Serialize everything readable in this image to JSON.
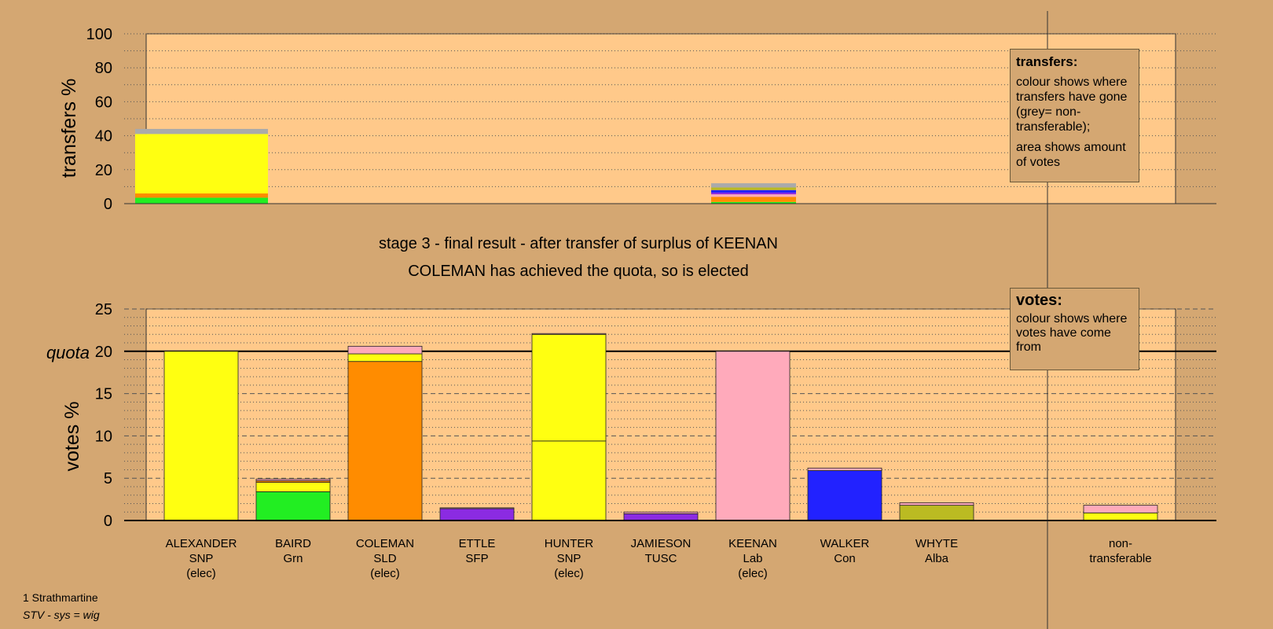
{
  "chart_data": [
    {
      "type": "bar",
      "stacked": true,
      "ylabel": "transfers %",
      "ylim": [
        0,
        100
      ],
      "yticks": [
        0,
        20,
        40,
        60,
        80,
        100
      ],
      "grid": "dotted every 10",
      "bars": [
        {
          "column": 0,
          "width": "wide",
          "segments": [
            {
              "value": 3.5,
              "color": "#22ee22"
            },
            {
              "value": 2.5,
              "color": "#ff8c00"
            },
            {
              "value": 35,
              "color": "#ffff11"
            },
            {
              "value": 3,
              "color": "#aaaaaa"
            }
          ]
        },
        {
          "column": 6,
          "width": "medium",
          "segments": [
            {
              "value": 1,
              "color": "#22ee22"
            },
            {
              "value": 3,
              "color": "#ff8c00"
            },
            {
              "value": 1.5,
              "color": "#ffaabb"
            },
            {
              "value": 1,
              "color": "#8b2be2"
            },
            {
              "value": 1.5,
              "color": "#2222ff"
            },
            {
              "value": 1.5,
              "color": "#bbbb22"
            },
            {
              "value": 2.5,
              "color": "#aaaaaa"
            }
          ]
        }
      ]
    },
    {
      "type": "bar",
      "stacked": true,
      "ylabel": "votes %",
      "ylim": [
        0,
        25
      ],
      "yticks": [
        0,
        5,
        10,
        15,
        20,
        25
      ],
      "quota": 20,
      "quota_label": "quota",
      "grid": "dotted every 1, dashed every 5",
      "bars": [
        {
          "column": 0,
          "segments": [
            {
              "value": 20,
              "color": "#ffff11"
            }
          ]
        },
        {
          "column": 1,
          "segments": [
            {
              "value": 3.4,
              "color": "#22ee22"
            },
            {
              "value": 1.1,
              "color": "#ffff11"
            },
            {
              "value": 0.2,
              "color": "#ff8c00"
            },
            {
              "value": 0.2,
              "color": "#ffaabb"
            }
          ]
        },
        {
          "column": 2,
          "segments": [
            {
              "value": 18.8,
              "color": "#ff8c00"
            },
            {
              "value": 0.9,
              "color": "#ffff11"
            },
            {
              "value": 0.9,
              "color": "#ffaabb"
            }
          ]
        },
        {
          "column": 3,
          "segments": [
            {
              "value": 1.4,
              "color": "#8b2be2"
            },
            {
              "value": 0.1,
              "color": "#ffaabb"
            }
          ]
        },
        {
          "column": 4,
          "segments": [
            {
              "value": 9.4,
              "color": "#ffff11"
            },
            {
              "value": 12.6,
              "color": "#ffff11"
            },
            {
              "value": 0.1,
              "color": "#ffaabb"
            }
          ]
        },
        {
          "column": 5,
          "segments": [
            {
              "value": 0.8,
              "color": "#8b2be2"
            },
            {
              "value": 0.2,
              "color": "#ffaabb"
            }
          ]
        },
        {
          "column": 6,
          "segments": [
            {
              "value": 20,
              "color": "#ffaabb"
            }
          ]
        },
        {
          "column": 7,
          "segments": [
            {
              "value": 5.9,
              "color": "#2222ff"
            },
            {
              "value": 0.3,
              "color": "#ffaabb"
            }
          ]
        },
        {
          "column": 8,
          "segments": [
            {
              "value": 1.8,
              "color": "#bbbb22"
            },
            {
              "value": 0.3,
              "color": "#ffaabb"
            }
          ]
        },
        {
          "column": 10,
          "segments": [
            {
              "value": 0.9,
              "color": "#ffff11"
            },
            {
              "value": 0.9,
              "color": "#ffaabb"
            }
          ]
        }
      ]
    }
  ],
  "candidates": [
    {
      "name": "ALEXANDER",
      "party": "SNP",
      "status": "(elec)"
    },
    {
      "name": "BAIRD",
      "party": "Grn",
      "status": ""
    },
    {
      "name": "COLEMAN",
      "party": "SLD",
      "status": "(elec)"
    },
    {
      "name": "ETTLE",
      "party": "SFP",
      "status": ""
    },
    {
      "name": "HUNTER",
      "party": "SNP",
      "status": "(elec)"
    },
    {
      "name": "JAMIESON",
      "party": "TUSC",
      "status": ""
    },
    {
      "name": "KEENAN",
      "party": "Lab",
      "status": "(elec)"
    },
    {
      "name": "WALKER",
      "party": "Con",
      "status": ""
    },
    {
      "name": "WHYTE",
      "party": "Alba",
      "status": ""
    },
    {
      "name": "",
      "party": "",
      "status": ""
    },
    {
      "name": "non-",
      "party": "transferable",
      "status": ""
    }
  ],
  "captions": {
    "stage": "stage 3 - final result - after transfer of surplus of KEENAN",
    "elected": "COLEMAN has achieved the quota, so is elected"
  },
  "legend_transfers": {
    "title": "transfers:",
    "line1": "colour shows where transfers have gone (grey= non-transferable);",
    "line2": "area shows amount of votes"
  },
  "legend_votes": {
    "title": "votes:",
    "line1": "colour shows where votes have come from"
  },
  "footer": {
    "ward": "1 Strathmartine",
    "system": "STV - sys = wig"
  },
  "colors": {
    "background": "#d4a772",
    "plot_area": "#ffc98a"
  }
}
